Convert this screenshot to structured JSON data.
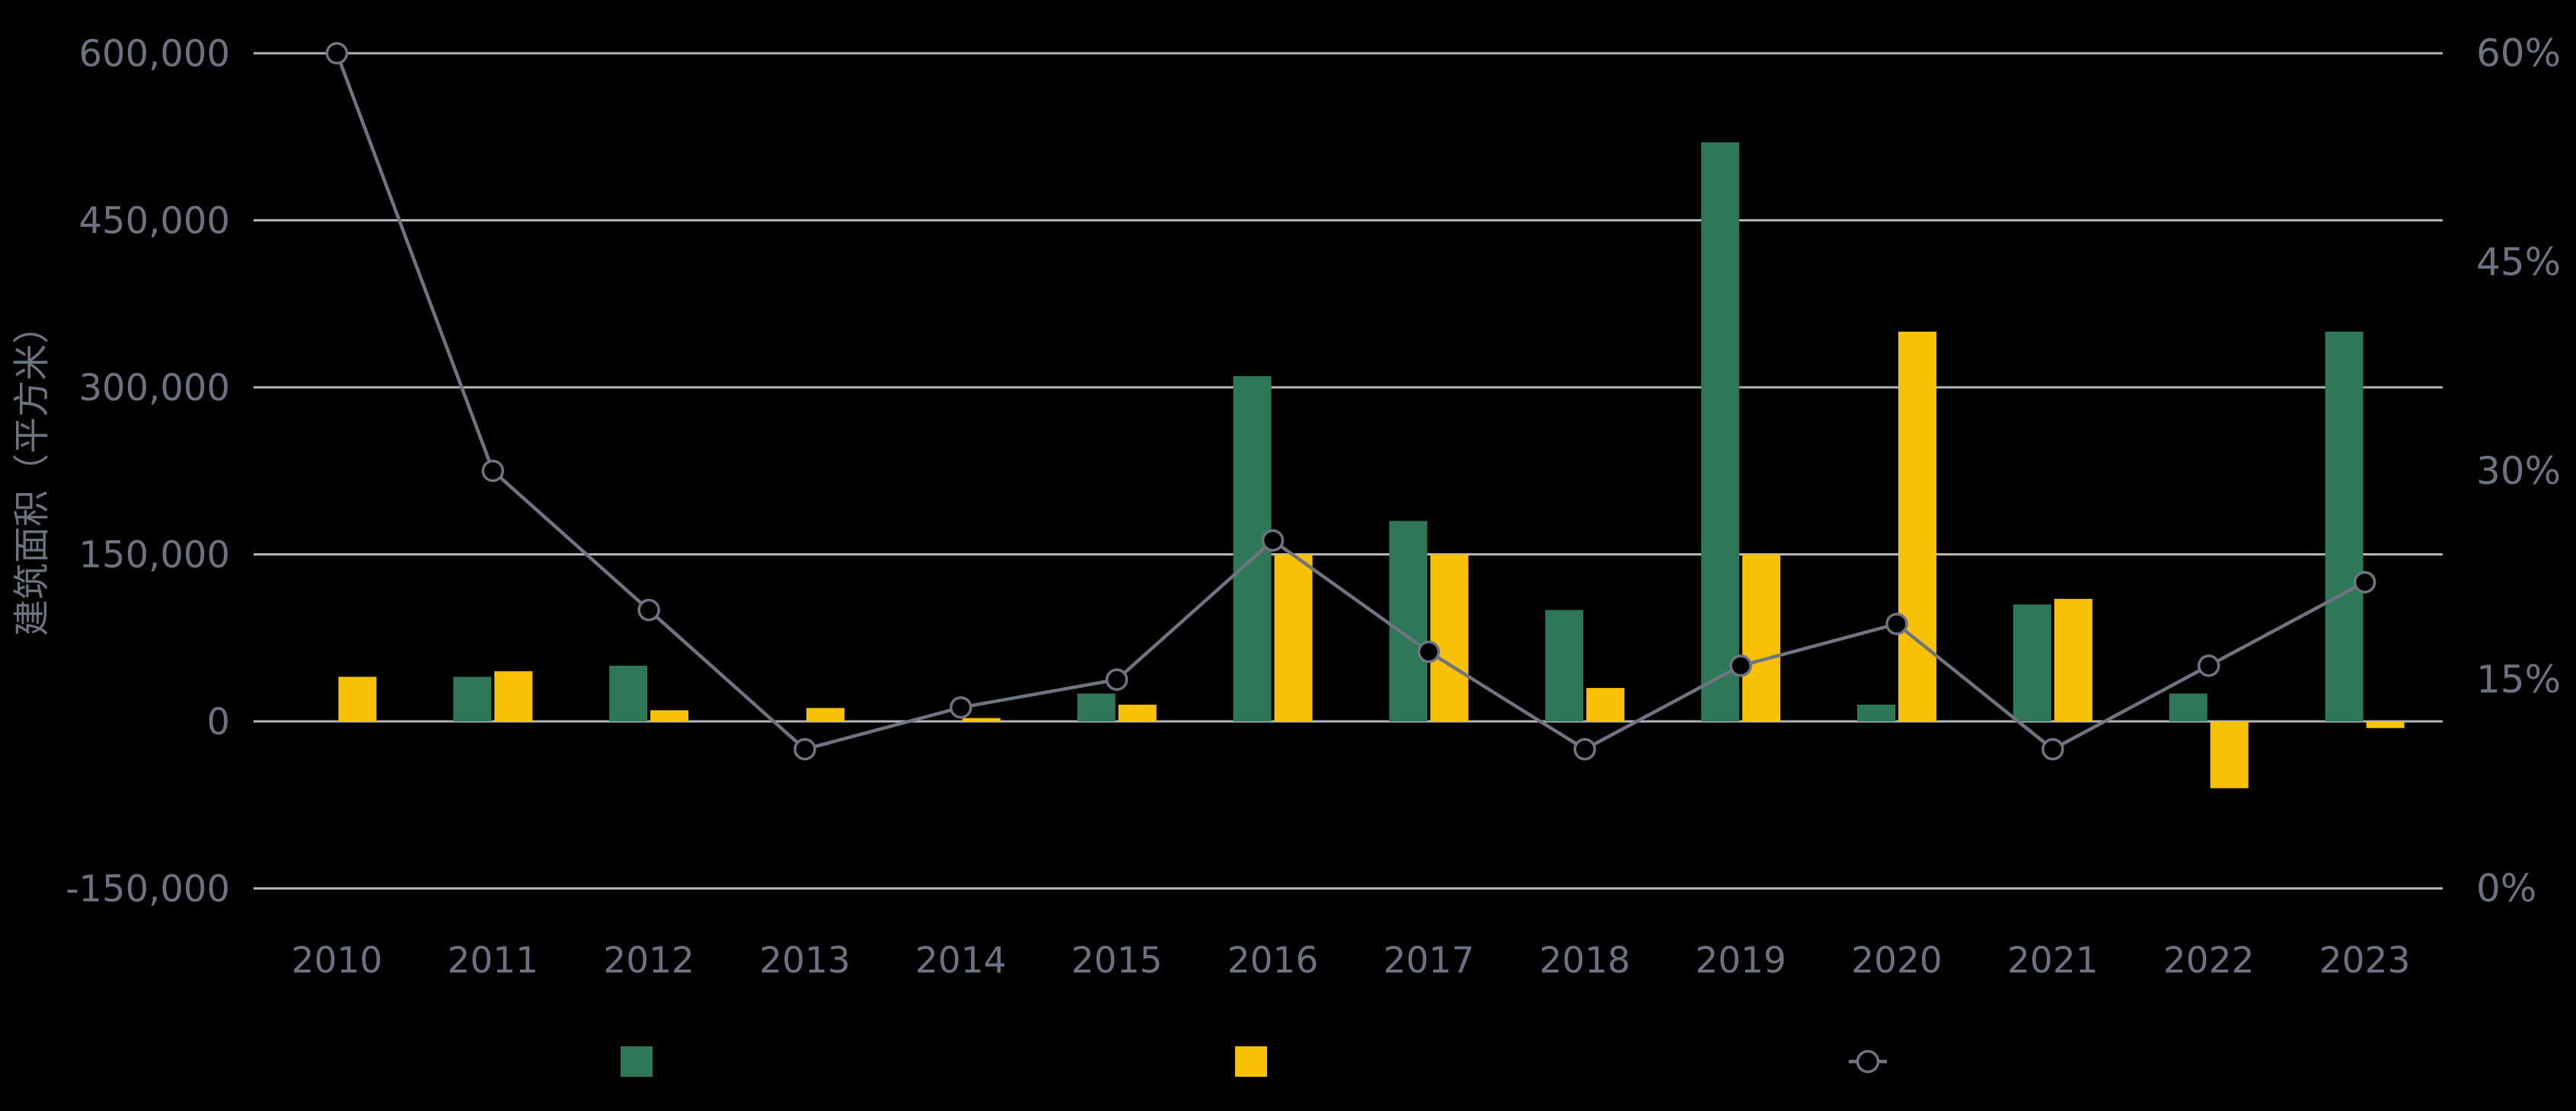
{
  "page": {
    "background": "#000000"
  },
  "colors": {
    "green_bar": "#2E7759",
    "yellow_bar": "#F9C104",
    "line_gray": "#6F7480",
    "gridline": "#B4B5B8",
    "tick_text": "#6C7280",
    "marker_fill": "#000000"
  },
  "chart_data": {
    "type": "combo-bar-line",
    "title": "",
    "categories": [
      "2010",
      "2011",
      "2012",
      "2013",
      "2014",
      "2015",
      "2016",
      "2017",
      "2018",
      "2019",
      "2020",
      "2021",
      "2022",
      "2023"
    ],
    "series": [
      {
        "name": "green-area-bars",
        "type": "bar",
        "axis": "left",
        "color": "#2E7759",
        "values": [
          null,
          40000,
          50000,
          null,
          null,
          25000,
          310000,
          180000,
          100000,
          520000,
          15000,
          105000,
          25000,
          350000
        ]
      },
      {
        "name": "yellow-area-bars",
        "type": "bar",
        "axis": "left",
        "color": "#F9C104",
        "values": [
          40000,
          45000,
          10000,
          12000,
          3000,
          15000,
          150000,
          150000,
          30000,
          150000,
          350000,
          110000,
          -60000,
          -6000
        ]
      },
      {
        "name": "percent-line",
        "type": "line",
        "axis": "right",
        "color": "#6F7480",
        "marker": "open-circle",
        "values": [
          60,
          30,
          20,
          10,
          13,
          15,
          25,
          17,
          10,
          16,
          19,
          10,
          16,
          22
        ]
      }
    ],
    "left_axis": {
      "title": "建筑面积（平方米）",
      "min": -150000,
      "max": 600000,
      "tick_step": 150000,
      "ticks": [
        600000,
        450000,
        300000,
        150000,
        0,
        -150000
      ],
      "tick_labels": [
        "600,000",
        "450,000",
        "300,000",
        "150,000",
        "0",
        "-150,000"
      ]
    },
    "right_axis": {
      "title": "",
      "min": 0,
      "max": 60,
      "tick_step": 15,
      "ticks": [
        60,
        45,
        30,
        15,
        0
      ],
      "tick_labels": [
        "60%",
        "45%",
        "30%",
        "15%",
        "0%"
      ]
    },
    "x_axis": {
      "labels": [
        "2010",
        "2011",
        "2012",
        "2013",
        "2014",
        "2015",
        "2016",
        "2017",
        "2018",
        "2019",
        "2020",
        "2021",
        "2022",
        "2023"
      ]
    },
    "grid": true,
    "legend_position": "bottom",
    "legend": [
      {
        "swatch": "green-square",
        "color": "#2E7759",
        "label": ""
      },
      {
        "swatch": "yellow-square",
        "color": "#F9C104",
        "label": ""
      },
      {
        "swatch": "gray-line-circle",
        "color": "#6F7480",
        "label": ""
      }
    ]
  }
}
